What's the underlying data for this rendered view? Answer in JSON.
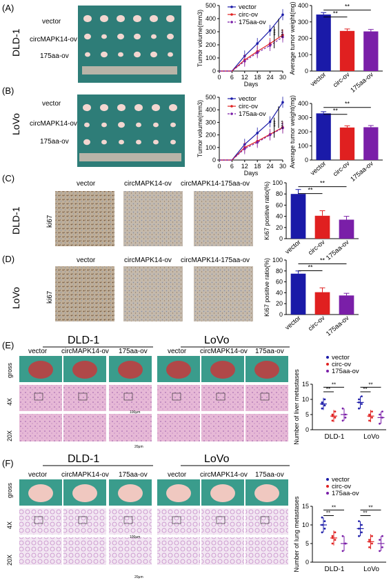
{
  "colors": {
    "vector": "#1a1aa8",
    "circ": "#e02020",
    "aa175": "#7a1fa8",
    "green_bg": "#2f7f7a",
    "ihc_bg": "#b9a58e",
    "he_bg": "#d9a0c4"
  },
  "panels": {
    "A": "(A)",
    "B": "(B)",
    "C": "(C)",
    "D": "(D)",
    "E": "(E)",
    "F": "(F)"
  },
  "cells": {
    "dld": "DLD-1",
    "lovo": "LoVo"
  },
  "photo_rows": {
    "vector": "vector",
    "circ": "circMAPK14-ov",
    "aa": "175aa-ov"
  },
  "ihc": {
    "col_vector": "vector",
    "col_circ": "circMAPK14-ov",
    "col_aa": "circMAPK14-175aa-ov",
    "row_label": "ki67"
  },
  "tissue": {
    "col_vector": "vector",
    "col_circ": "circMAPK14-ov",
    "col_aa": "175aa-ov",
    "row_gross": "gross",
    "row_4x": "4X",
    "row_20x": "20X",
    "scale_100": "100μm",
    "scale_20": "20μm"
  },
  "sig": {
    "two": "**",
    "three": "***",
    "four": "****"
  },
  "chart_data": [
    {
      "id": "A_volume",
      "type": "line",
      "ylabel": "Tumor volume(mm3)",
      "xlabel": "Days",
      "x": [
        0,
        6,
        12,
        18,
        24,
        30
      ],
      "xlim": [
        0,
        30
      ],
      "ylim": [
        0,
        500
      ],
      "yticks": [
        0,
        100,
        200,
        300,
        400,
        500
      ],
      "series": [
        {
          "name": "vector",
          "values": [
            0,
            0,
            115,
            210,
            310,
            430
          ]
        },
        {
          "name": "circ-ov",
          "values": [
            0,
            0,
            85,
            150,
            210,
            275
          ]
        },
        {
          "name": "175aa-ov",
          "values": [
            0,
            0,
            75,
            140,
            195,
            260
          ]
        }
      ],
      "sig": [
        "***",
        "****"
      ]
    },
    {
      "id": "A_weight",
      "type": "bar",
      "ylabel": "Average tumor weight(mg)",
      "categories": [
        "vector",
        "circ-ov",
        "175aa-ov"
      ],
      "values": [
        345,
        245,
        242
      ],
      "ylim": [
        0,
        400
      ],
      "yticks": [
        0,
        100,
        200,
        300,
        400
      ],
      "sig": [
        "**",
        "**"
      ]
    },
    {
      "id": "B_volume",
      "type": "line",
      "ylabel": "Tumor volume(mm3)",
      "xlabel": "Days",
      "x": [
        0,
        6,
        12,
        18,
        24,
        30
      ],
      "xlim": [
        0,
        30
      ],
      "ylim": [
        0,
        500
      ],
      "yticks": [
        0,
        100,
        200,
        300,
        400,
        500
      ],
      "series": [
        {
          "name": "vector",
          "values": [
            0,
            0,
            125,
            215,
            305,
            460
          ]
        },
        {
          "name": "circ-ov",
          "values": [
            0,
            0,
            100,
            150,
            205,
            260
          ]
        },
        {
          "name": "175aa-ov",
          "values": [
            0,
            0,
            90,
            140,
            200,
            255
          ]
        }
      ],
      "sig": [
        "***",
        "****"
      ]
    },
    {
      "id": "B_weight",
      "type": "bar",
      "ylabel": "Average tumor weight(mg)",
      "categories": [
        "vector",
        "circ-ov",
        "175aa-ov"
      ],
      "values": [
        330,
        230,
        232
      ],
      "ylim": [
        0,
        400
      ],
      "yticks": [
        0,
        100,
        200,
        300,
        400
      ],
      "sig": [
        "**",
        "**"
      ]
    },
    {
      "id": "C_ki67",
      "type": "bar",
      "ylabel": "Ki67 positive ratio(%)",
      "categories": [
        "vector",
        "circ-ov",
        "175aa-ov"
      ],
      "values": [
        80,
        41,
        34
      ],
      "errors": [
        8,
        9,
        6
      ],
      "ylim": [
        0,
        100
      ],
      "yticks": [
        0,
        20,
        40,
        60,
        80,
        100
      ],
      "sig": [
        "**",
        "**"
      ]
    },
    {
      "id": "D_ki67",
      "type": "bar",
      "ylabel": "Ki67 positive ratio(%)",
      "categories": [
        "vector",
        "circ-ov",
        "175aa-ov"
      ],
      "values": [
        75,
        41,
        35
      ],
      "errors": [
        5,
        8,
        4
      ],
      "ylim": [
        0,
        100
      ],
      "yticks": [
        0,
        20,
        40,
        60,
        80,
        100
      ],
      "sig": [
        "**",
        "**"
      ]
    },
    {
      "id": "E_liver",
      "type": "scatter",
      "ylabel": "Number of liver metastases",
      "categories": [
        "DLD-1",
        "LoVo"
      ],
      "ylim": [
        0,
        15
      ],
      "yticks": [
        0,
        5,
        10,
        15
      ],
      "series": [
        {
          "name": "vector",
          "means": [
            8.5,
            9
          ],
          "points": [
            [
              7,
              8,
              9,
              10,
              8.5
            ],
            [
              7,
              8.5,
              10,
              11,
              9
            ]
          ]
        },
        {
          "name": "circ-ov",
          "means": [
            4.5,
            4.5
          ],
          "points": [
            [
              3,
              4,
              5,
              6,
              4.5
            ],
            [
              3,
              4,
              5,
              6,
              4.5
            ]
          ]
        },
        {
          "name": "175aa-ov",
          "means": [
            5,
            4
          ],
          "points": [
            [
              3,
              5,
              7,
              4
            ],
            [
              2,
              4,
              5,
              6
            ]
          ]
        }
      ],
      "sig": [
        "**",
        "**",
        "**",
        "**"
      ]
    },
    {
      "id": "F_lung",
      "type": "scatter",
      "ylabel": "Number of lung metastases",
      "categories": [
        "DLD-1",
        "LoVo"
      ],
      "ylim": [
        0,
        15
      ],
      "yticks": [
        0,
        5,
        10,
        15
      ],
      "series": [
        {
          "name": "vector",
          "means": [
            10,
            9
          ],
          "points": [
            [
              8,
              9,
              10,
              11,
              12
            ],
            [
              7,
              8,
              9,
              10,
              11
            ]
          ]
        },
        {
          "name": "circ-ov",
          "means": [
            6.5,
            5.5
          ],
          "points": [
            [
              5,
              6,
              7,
              8,
              6.5
            ],
            [
              4,
              5,
              6,
              7,
              5.5
            ]
          ]
        },
        {
          "name": "175aa-ov",
          "means": [
            5,
            5
          ],
          "points": [
            [
              3,
              5,
              7,
              5
            ],
            [
              3,
              4,
              6,
              7
            ]
          ]
        }
      ],
      "sig": [
        "**",
        "**",
        "**",
        "**"
      ]
    }
  ]
}
